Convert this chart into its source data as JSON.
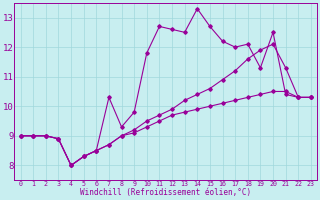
{
  "xlabel": "Windchill (Refroidissement éolien,°C)",
  "background_color": "#c8eef0",
  "line_color": "#990099",
  "xlim": [
    -0.5,
    23.5
  ],
  "ylim": [
    7.5,
    13.5
  ],
  "xticks": [
    0,
    1,
    2,
    3,
    4,
    5,
    6,
    7,
    8,
    9,
    10,
    11,
    12,
    13,
    14,
    15,
    16,
    17,
    18,
    19,
    20,
    21,
    22,
    23
  ],
  "yticks": [
    8,
    9,
    10,
    11,
    12,
    13
  ],
  "line1_x": [
    0,
    1,
    2,
    3,
    4,
    5,
    6,
    7,
    8,
    9,
    10,
    11,
    12,
    13,
    14,
    15,
    16,
    17,
    18,
    19,
    20,
    21,
    22,
    23
  ],
  "line1_y": [
    9.0,
    9.0,
    9.0,
    8.9,
    8.0,
    8.3,
    8.5,
    10.3,
    9.3,
    9.8,
    11.8,
    12.7,
    12.6,
    12.5,
    13.3,
    12.7,
    12.2,
    12.0,
    12.1,
    11.3,
    12.5,
    10.4,
    10.3,
    10.3
  ],
  "line2_x": [
    0,
    1,
    2,
    3,
    4,
    5,
    6,
    7,
    8,
    9,
    10,
    11,
    12,
    13,
    14,
    15,
    16,
    17,
    18,
    19,
    20,
    21,
    22,
    23
  ],
  "line2_y": [
    9.0,
    9.0,
    9.0,
    8.9,
    8.0,
    8.3,
    8.5,
    8.7,
    9.0,
    9.1,
    9.3,
    9.5,
    9.7,
    9.8,
    9.9,
    10.0,
    10.1,
    10.2,
    10.3,
    10.4,
    10.5,
    10.5,
    10.3,
    10.3
  ],
  "line3_x": [
    0,
    1,
    2,
    3,
    4,
    5,
    6,
    7,
    8,
    9,
    10,
    11,
    12,
    13,
    14,
    15,
    16,
    17,
    18,
    19,
    20,
    21,
    22,
    23
  ],
  "line3_y": [
    9.0,
    9.0,
    9.0,
    8.9,
    8.0,
    8.3,
    8.5,
    8.7,
    9.0,
    9.2,
    9.5,
    9.7,
    9.9,
    10.2,
    10.4,
    10.6,
    10.9,
    11.2,
    11.6,
    11.9,
    12.1,
    11.3,
    10.3,
    10.3
  ]
}
